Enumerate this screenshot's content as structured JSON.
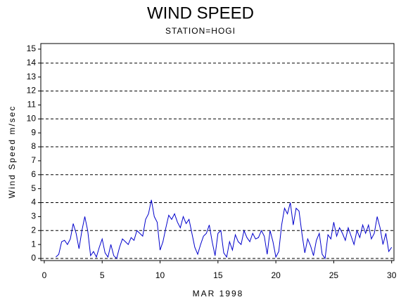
{
  "chart_data": {
    "type": "line",
    "title": "WIND SPEED",
    "subtitle": "STATION=HOGI",
    "x_label": "MAR 1998",
    "y_label": "Wind Speed m/sec",
    "xlim": [
      -0.3,
      30.2
    ],
    "ylim": [
      -0.15,
      15.4
    ],
    "xticks": [
      0,
      5,
      10,
      15,
      20,
      25,
      30
    ],
    "yticks": [
      0,
      1,
      2,
      3,
      4,
      5,
      6,
      7,
      8,
      9,
      10,
      11,
      12,
      13,
      14,
      15
    ],
    "grid_values": [
      0,
      2,
      4,
      6,
      8,
      10,
      12,
      14
    ],
    "series": [
      {
        "name": "Wind Speed",
        "color": "#0000cc",
        "x": [
          1,
          1.25,
          1.5,
          1.75,
          2,
          2.25,
          2.5,
          2.75,
          3,
          3.25,
          3.5,
          3.75,
          4,
          4.25,
          4.5,
          4.75,
          5,
          5.25,
          5.5,
          5.75,
          6,
          6.25,
          6.5,
          6.75,
          7,
          7.25,
          7.5,
          7.75,
          8,
          8.25,
          8.5,
          8.75,
          9,
          9.25,
          9.5,
          9.75,
          10,
          10.25,
          10.5,
          10.75,
          11,
          11.25,
          11.5,
          11.75,
          12,
          12.25,
          12.5,
          12.75,
          13,
          13.25,
          13.5,
          13.75,
          14,
          14.25,
          14.5,
          14.75,
          15,
          15.25,
          15.5,
          15.75,
          16,
          16.25,
          16.5,
          16.75,
          17,
          17.25,
          17.5,
          17.75,
          18,
          18.25,
          18.5,
          18.75,
          19,
          19.25,
          19.5,
          19.75,
          20,
          20.25,
          20.5,
          20.75,
          21,
          21.25,
          21.5,
          21.75,
          22,
          22.25,
          22.5,
          22.75,
          23,
          23.25,
          23.5,
          23.75,
          24,
          24.25,
          24.5,
          24.75,
          25,
          25.25,
          25.5,
          25.75,
          26,
          26.25,
          26.5,
          26.75,
          27,
          27.25,
          27.5,
          27.75,
          28,
          28.25,
          28.5,
          28.75,
          29,
          29.25,
          29.5,
          29.75,
          30
        ],
        "values": [
          0.1,
          0.3,
          1.2,
          1.3,
          1.0,
          1.4,
          2.5,
          1.8,
          0.7,
          2.0,
          3.0,
          2.0,
          0.2,
          0.5,
          0.1,
          0.8,
          1.4,
          0.4,
          0.1,
          1.0,
          0.2,
          0.0,
          0.8,
          1.4,
          1.2,
          1.0,
          1.5,
          1.3,
          2.0,
          1.8,
          1.6,
          2.8,
          3.2,
          4.2,
          3.0,
          2.6,
          0.6,
          1.2,
          2.2,
          3.1,
          2.8,
          3.2,
          2.6,
          2.2,
          3.0,
          2.5,
          2.8,
          1.8,
          0.8,
          0.3,
          1.0,
          1.6,
          1.8,
          2.4,
          1.2,
          0.2,
          1.8,
          2.0,
          0.4,
          0.1,
          1.2,
          0.6,
          1.7,
          1.2,
          1.0,
          2.0,
          1.5,
          1.2,
          1.8,
          1.4,
          1.5,
          2.0,
          1.6,
          0.3,
          2.0,
          1.2,
          0.1,
          0.5,
          2.4,
          3.6,
          3.2,
          4.0,
          2.4,
          3.6,
          3.4,
          1.8,
          0.4,
          1.4,
          0.9,
          0.2,
          1.3,
          1.8,
          0.3,
          0.0,
          1.7,
          1.4,
          2.6,
          1.6,
          2.2,
          1.8,
          1.3,
          2.2,
          1.6,
          1.0,
          2.0,
          1.5,
          2.4,
          1.8,
          2.4,
          1.4,
          1.8,
          3.0,
          2.2,
          1.0,
          1.8,
          0.5,
          0.8
        ]
      }
    ]
  }
}
